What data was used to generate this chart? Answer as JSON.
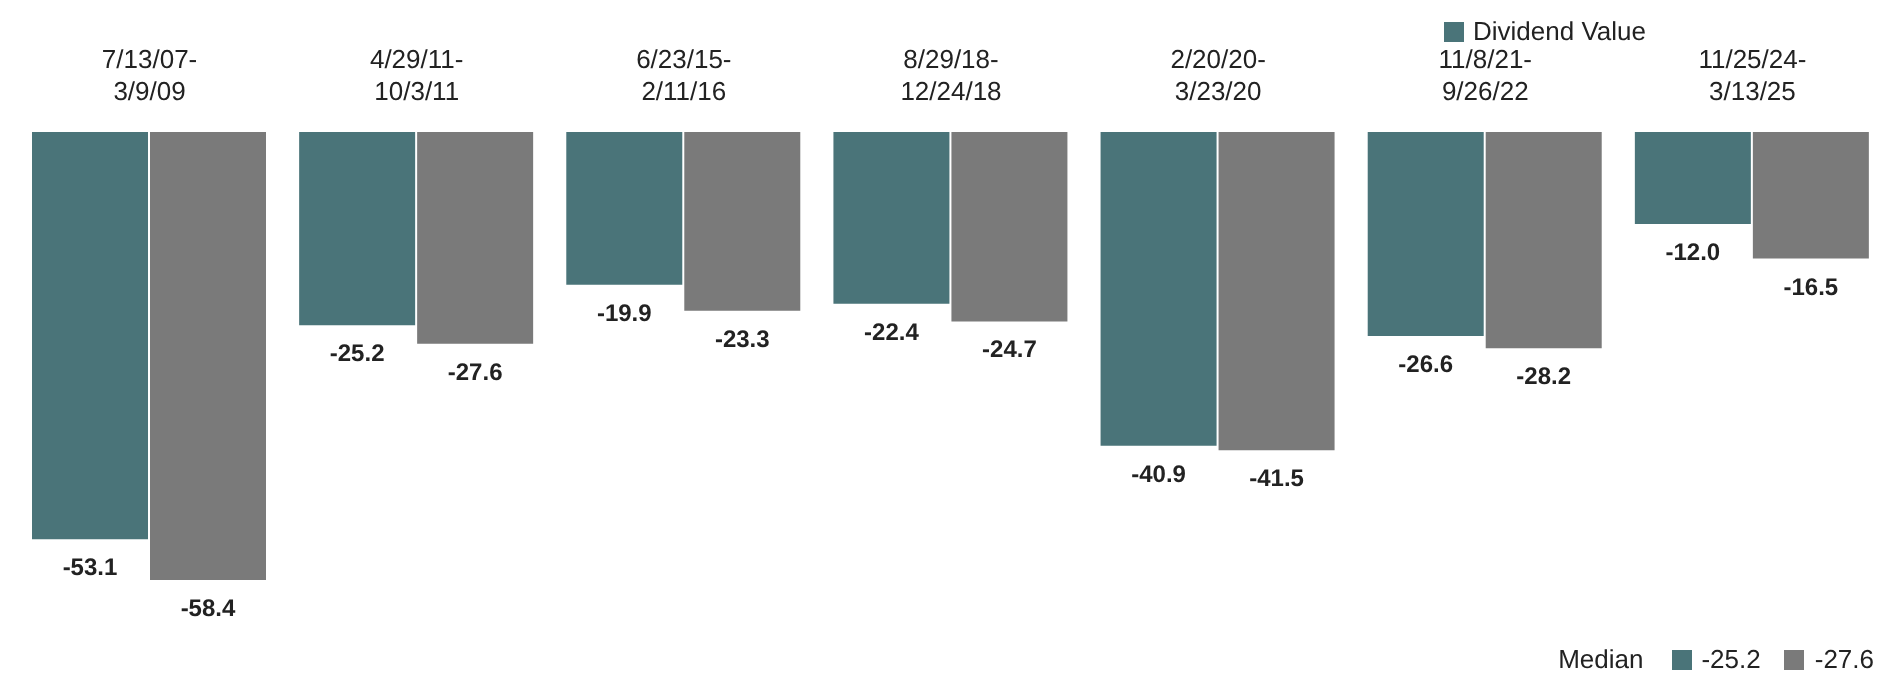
{
  "chart_data": {
    "type": "bar",
    "categories": [
      "7/13/07-3/9/09",
      "4/29/11-10/3/11",
      "6/23/15-2/11/16",
      "8/29/18-12/24/18",
      "2/20/20-3/23/20",
      "11/8/21-9/26/22",
      "11/25/24-3/13/25"
    ],
    "series": [
      {
        "name": "Dividend Value",
        "color": "#4a7479",
        "values": [
          -53.1,
          -25.2,
          -19.9,
          -22.4,
          -40.9,
          -26.6,
          -12.0
        ],
        "value_labels": [
          "-53.1",
          "-25.2",
          "-19.9",
          "-22.4",
          "-40.9",
          "-26.6",
          "-12.0"
        ]
      },
      {
        "color": "#7a7a7a",
        "values": [
          -58.4,
          -27.6,
          -23.3,
          -24.7,
          -41.5,
          -28.2,
          -16.5
        ],
        "value_labels": [
          "-58.4",
          "-27.6",
          "-23.3",
          "-24.7",
          "-41.5",
          "-28.2",
          "-16.5"
        ]
      }
    ],
    "legend": "top right",
    "tick_labels": "x",
    "annotations": [
      "Median",
      "-25.2",
      "-27.6"
    ]
  }
}
